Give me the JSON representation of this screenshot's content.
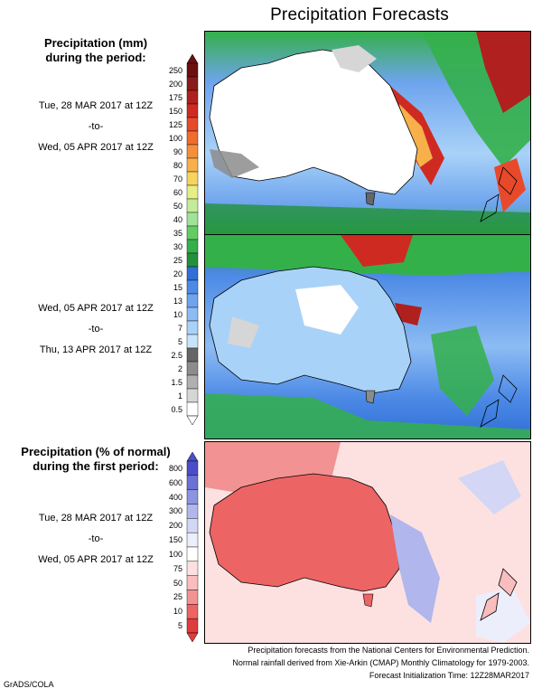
{
  "title": "Precipitation Forecasts",
  "amount_heading": [
    "Precipitation (mm)",
    "during the period:"
  ],
  "period1": {
    "start": "Tue, 28 MAR 2017 at 12Z",
    "to": "-to-",
    "end": "Wed, 05 APR 2017 at 12Z"
  },
  "period2": {
    "start": "Wed, 05 APR 2017 at 12Z",
    "to": "-to-",
    "end": "Thu, 13 APR 2017 at 12Z"
  },
  "percent_heading": [
    "Precipitation (% of normal)",
    "during the first period:"
  ],
  "period3": {
    "start": "Tue, 28 MAR 2017 at 12Z",
    "to": "-to-",
    "end": "Wed, 05 APR 2017 at 12Z"
  },
  "mm_scale": {
    "labels": [
      "250",
      "200",
      "175",
      "150",
      "125",
      "100",
      "90",
      "80",
      "70",
      "60",
      "50",
      "40",
      "35",
      "30",
      "25",
      "20",
      "15",
      "13",
      "10",
      "7",
      "5",
      "2.5",
      "2",
      "1.5",
      "1",
      "0.5"
    ],
    "colors": [
      "#6e0f0f",
      "#8b1a1a",
      "#b0201e",
      "#cf2a22",
      "#e8492b",
      "#f06c2e",
      "#f58f3a",
      "#f7b04a",
      "#f6d45e",
      "#e6ef86",
      "#c3ec9a",
      "#9fe39a",
      "#63cc63",
      "#34b04a",
      "#22913c",
      "#2f6fd6",
      "#4d8ae6",
      "#6ea4ee",
      "#8cbcf3",
      "#a9d2f8",
      "#c8e4fc",
      "#666666",
      "#8c8c8c",
      "#b0b0b0",
      "#d6d6d6",
      "#ffffff"
    ]
  },
  "pct_scale": {
    "labels": [
      "800",
      "600",
      "400",
      "300",
      "200",
      "150",
      "100",
      "75",
      "50",
      "25",
      "10",
      "5"
    ],
    "colors": [
      "#4a4fc8",
      "#6a72d6",
      "#8c94e2",
      "#b1b6ec",
      "#d3d6f5",
      "#eceefb",
      "#ffffff",
      "#fde1e1",
      "#f9bdbd",
      "#f39292",
      "#ec6464",
      "#e23b3b"
    ]
  },
  "footer": [
    "Precipitation forecasts from the National Centers for Environmental Prediction.",
    "Normal rainfall derived from Xie-Arkin (CMAP) Monthly Climatology for 1979-2003.",
    "Forecast Initialization Time: 12Z28MAR2017"
  ],
  "credit": "GrADS/COLA"
}
